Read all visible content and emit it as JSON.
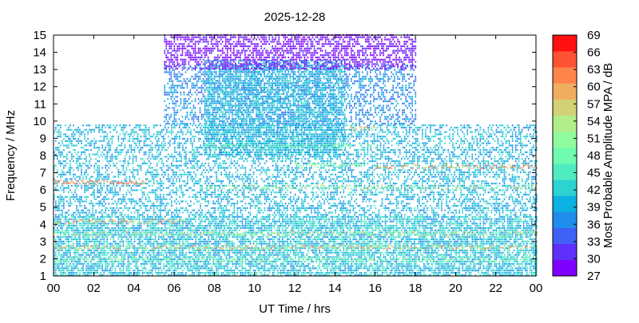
{
  "chart_data": {
    "type": "heatmap",
    "title": "2025-12-28",
    "xlabel": "UT Time / hrs",
    "ylabel": "Frequency / MHz",
    "colorbar_label": "Most Probable Amplitude MPA / dB",
    "xlim": [
      0,
      24
    ],
    "ylim": [
      1,
      15
    ],
    "x_ticks": [
      "00",
      "02",
      "04",
      "06",
      "08",
      "10",
      "12",
      "14",
      "16",
      "18",
      "20",
      "22",
      "00"
    ],
    "y_ticks": [
      "1",
      "2",
      "3",
      "4",
      "5",
      "6",
      "7",
      "8",
      "9",
      "10",
      "11",
      "12",
      "13",
      "14",
      "15"
    ],
    "colorbar": {
      "min": 27,
      "max": 69,
      "ticks": [
        "27",
        "30",
        "33",
        "36",
        "39",
        "42",
        "45",
        "48",
        "51",
        "54",
        "57",
        "60",
        "63",
        "66",
        "69"
      ],
      "colors": [
        "#7f00ff",
        "#5f30fb",
        "#3f61f5",
        "#1f8deb",
        "#0bb1e0",
        "#2dd3d1",
        "#4fecc2",
        "#6ffbb0",
        "#91fc9d",
        "#b1ee8a",
        "#d2d175",
        "#f0ad60",
        "#ff844b",
        "#ff5233",
        "#ff0f0f"
      ]
    },
    "regions": [
      {
        "t": [
          0,
          24
        ],
        "f": [
          1,
          4.5
        ],
        "density": 0.75,
        "mpa": [
          36,
          46
        ]
      },
      {
        "t": [
          0,
          24
        ],
        "f": [
          4.5,
          9.8
        ],
        "density": 0.45,
        "mpa": [
          36,
          44
        ]
      },
      {
        "t": [
          5.5,
          18
        ],
        "f": [
          9.8,
          13.2
        ],
        "density": 0.45,
        "mpa": [
          34,
          40
        ]
      },
      {
        "t": [
          7.5,
          14.5
        ],
        "f": [
          8,
          13.5
        ],
        "density": 0.65,
        "mpa": [
          36,
          44
        ]
      },
      {
        "t": [
          5.5,
          18
        ],
        "f": [
          13,
          15
        ],
        "density": 0.6,
        "mpa": [
          27,
          31
        ]
      }
    ],
    "bands": [
      {
        "t": [
          0,
          4.6
        ],
        "f": 6.4,
        "mpa": [
          58,
          66
        ]
      },
      {
        "t": [
          0,
          6.5
        ],
        "f": 4.1,
        "mpa": [
          50,
          64
        ]
      },
      {
        "t": [
          0,
          24
        ],
        "f": 3.4,
        "mpa": [
          46,
          58
        ]
      },
      {
        "t": [
          0,
          24
        ],
        "f": 2.6,
        "mpa": [
          50,
          62
        ]
      },
      {
        "t": [
          0,
          24
        ],
        "f": 1.9,
        "mpa": [
          44,
          54
        ]
      },
      {
        "t": [
          16,
          24
        ],
        "f": 7.3,
        "mpa": [
          54,
          64
        ]
      },
      {
        "t": [
          7.5,
          24
        ],
        "f": 6.1,
        "mpa": [
          44,
          58
        ]
      },
      {
        "t": [
          7.5,
          16
        ],
        "f": 8.5,
        "mpa": [
          44,
          52
        ]
      },
      {
        "t": [
          14.5,
          16
        ],
        "f": 9.5,
        "mpa": [
          52,
          60
        ]
      },
      {
        "t": [
          12,
          15.5
        ],
        "f": 7.4,
        "mpa": [
          46,
          54
        ]
      }
    ]
  }
}
